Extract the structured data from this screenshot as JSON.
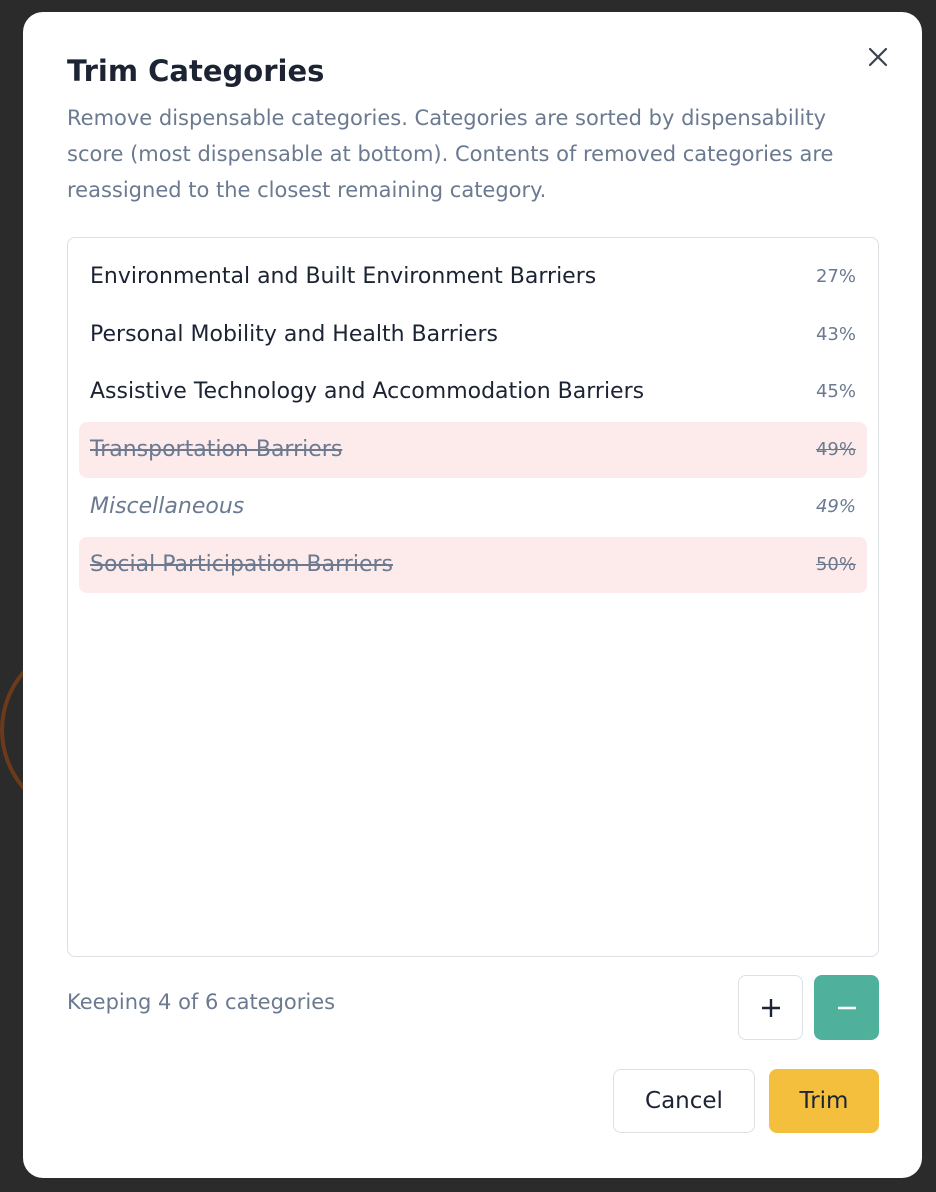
{
  "dialog": {
    "title": "Trim Categories",
    "description": "Remove dispensable categories. Categories are sorted by dispensability score (most dispensable at bottom). Contents of removed categories are reassigned to the closest remaining category.",
    "categories": [
      {
        "name": "Environmental and Built Environment Barriers",
        "score": "27%",
        "removed": false,
        "italic": false
      },
      {
        "name": "Personal Mobility and Health Barriers",
        "score": "43%",
        "removed": false,
        "italic": false
      },
      {
        "name": "Assistive Technology and Accommodation Barriers",
        "score": "45%",
        "removed": false,
        "italic": false
      },
      {
        "name": "Transportation Barriers",
        "score": "49%",
        "removed": true,
        "italic": false
      },
      {
        "name": "Miscellaneous",
        "score": "49%",
        "removed": false,
        "italic": true
      },
      {
        "name": "Social Participation Barriers",
        "score": "50%",
        "removed": true,
        "italic": false
      }
    ],
    "status": "Keeping 4 of 6 categories",
    "buttons": {
      "cancel": "Cancel",
      "trim": "Trim"
    }
  }
}
